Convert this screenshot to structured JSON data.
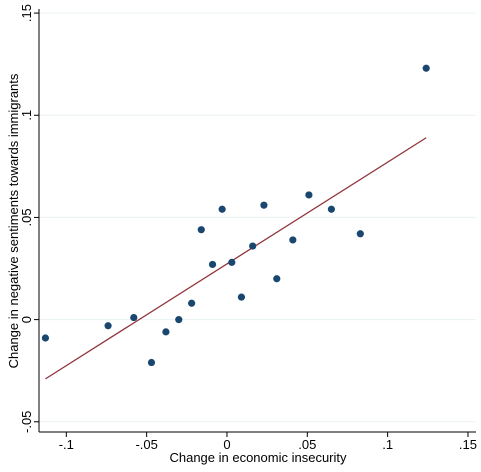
{
  "chart_data": {
    "type": "scatter",
    "title": "",
    "xlabel": "Change in economic insecurity",
    "ylabel": "Change in negative sentiments towards immigrants",
    "xlim": [
      -0.117,
      0.155
    ],
    "ylim": [
      -0.055,
      0.152
    ],
    "grid": true,
    "x_ticks": [
      {
        "value": -0.1,
        "label": "-.1"
      },
      {
        "value": -0.05,
        "label": "-.05"
      },
      {
        "value": 0,
        "label": "0"
      },
      {
        "value": 0.05,
        "label": ".05"
      },
      {
        "value": 0.1,
        "label": ".1"
      },
      {
        "value": 0.15,
        "label": ".15"
      }
    ],
    "y_ticks": [
      {
        "value": -0.05,
        "label": "-.05"
      },
      {
        "value": 0,
        "label": "0"
      },
      {
        "value": 0.05,
        "label": ".05"
      },
      {
        "value": 0.1,
        "label": ".1"
      },
      {
        "value": 0.15,
        "label": ".15"
      }
    ],
    "points": [
      {
        "x": -0.113,
        "y": -0.009
      },
      {
        "x": -0.074,
        "y": -0.003
      },
      {
        "x": -0.058,
        "y": 0.001
      },
      {
        "x": -0.047,
        "y": -0.021
      },
      {
        "x": -0.038,
        "y": -0.006
      },
      {
        "x": -0.03,
        "y": 0.0
      },
      {
        "x": -0.022,
        "y": 0.008
      },
      {
        "x": -0.016,
        "y": 0.044
      },
      {
        "x": -0.009,
        "y": 0.027
      },
      {
        "x": -0.003,
        "y": 0.054
      },
      {
        "x": 0.003,
        "y": 0.028
      },
      {
        "x": 0.009,
        "y": 0.011
      },
      {
        "x": 0.016,
        "y": 0.036
      },
      {
        "x": 0.023,
        "y": 0.056
      },
      {
        "x": 0.031,
        "y": 0.02
      },
      {
        "x": 0.041,
        "y": 0.039
      },
      {
        "x": 0.051,
        "y": 0.061
      },
      {
        "x": 0.065,
        "y": 0.054
      },
      {
        "x": 0.083,
        "y": 0.042
      },
      {
        "x": 0.124,
        "y": 0.123
      }
    ],
    "fit_line": {
      "x1": -0.113,
      "y1": -0.029,
      "x2": 0.124,
      "y2": 0.089
    },
    "colors": {
      "marker": "#1a476f",
      "fit_line": "#90353b",
      "grid": "#eaf2f3",
      "axis": "#000000"
    }
  }
}
